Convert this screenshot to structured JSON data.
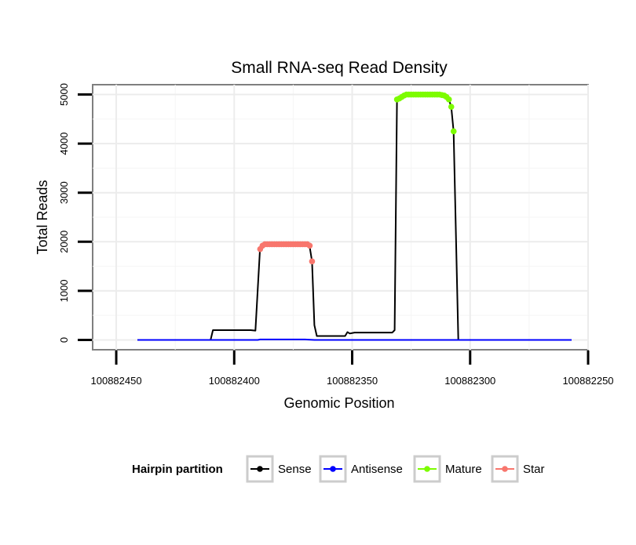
{
  "chart_data": {
    "type": "line",
    "title": "Small RNA-seq Read Density",
    "xlabel": "Genomic Position",
    "ylabel": "Total Reads",
    "xlim": [
      100882460,
      100882250
    ],
    "x_reversed": true,
    "ylim": [
      -200,
      5200
    ],
    "x_ticks": [
      100882450,
      100882400,
      100882350,
      100882300,
      100882250
    ],
    "x_tick_labels": [
      "100882450",
      "100882400",
      "100882350",
      "100882300",
      "100882250"
    ],
    "y_ticks": [
      0,
      1000,
      2000,
      3000,
      4000,
      5000
    ],
    "y_tick_labels": [
      "0",
      "1000",
      "2000",
      "3000",
      "4000",
      "5000"
    ],
    "grid": true,
    "legend": {
      "title": "Hairpin partition",
      "position": "bottom",
      "items": [
        {
          "name": "Sense",
          "color": "#000000"
        },
        {
          "name": "Antisense",
          "color": "#0000ff"
        },
        {
          "name": "Mature",
          "color": "#7cfc00"
        },
        {
          "name": "Star",
          "color": "#f8766d"
        }
      ]
    },
    "series": [
      {
        "name": "Sense",
        "color": "#000000",
        "points": [
          [
            100882441,
            0
          ],
          [
            100882410,
            0
          ],
          [
            100882409,
            200
          ],
          [
            100882393,
            200
          ],
          [
            100882391,
            190
          ],
          [
            100882389,
            1900
          ],
          [
            100882387,
            1950
          ],
          [
            100882370,
            1950
          ],
          [
            100882368,
            1900
          ],
          [
            100882367,
            1600
          ],
          [
            100882366,
            300
          ],
          [
            100882365,
            80
          ],
          [
            100882353,
            80
          ],
          [
            100882352,
            160
          ],
          [
            100882351,
            130
          ],
          [
            100882349,
            150
          ],
          [
            100882333,
            150
          ],
          [
            100882332,
            200
          ],
          [
            100882331,
            4900
          ],
          [
            100882329,
            4950
          ],
          [
            100882325,
            5000
          ],
          [
            100882312,
            5000
          ],
          [
            100882310,
            4950
          ],
          [
            100882309,
            4900
          ],
          [
            100882308,
            4750
          ],
          [
            100882307,
            4250
          ],
          [
            100882305,
            0
          ],
          [
            100882257,
            0
          ]
        ]
      },
      {
        "name": "Antisense",
        "color": "#0000ff",
        "points": [
          [
            100882441,
            0
          ],
          [
            100882390,
            0
          ],
          [
            100882389,
            10
          ],
          [
            100882370,
            10
          ],
          [
            100882366,
            0
          ],
          [
            100882257,
            0
          ]
        ]
      },
      {
        "name": "Mature",
        "color": "#7cfc00",
        "points": [
          [
            100882331,
            4900
          ],
          [
            100882330,
            4920
          ],
          [
            100882329,
            4950
          ],
          [
            100882328,
            4980
          ],
          [
            100882327,
            5000
          ],
          [
            100882326,
            5000
          ],
          [
            100882325,
            5000
          ],
          [
            100882324,
            5000
          ],
          [
            100882323,
            5000
          ],
          [
            100882322,
            5000
          ],
          [
            100882321,
            5000
          ],
          [
            100882320,
            5000
          ],
          [
            100882319,
            5000
          ],
          [
            100882318,
            5000
          ],
          [
            100882317,
            5000
          ],
          [
            100882316,
            5000
          ],
          [
            100882315,
            5000
          ],
          [
            100882314,
            5000
          ],
          [
            100882313,
            5000
          ],
          [
            100882312,
            4990
          ],
          [
            100882311,
            4980
          ],
          [
            100882310,
            4950
          ],
          [
            100882309,
            4900
          ],
          [
            100882308,
            4750
          ],
          [
            100882307,
            4250
          ]
        ]
      },
      {
        "name": "Star",
        "color": "#f8766d",
        "points": [
          [
            100882389,
            1850
          ],
          [
            100882388,
            1920
          ],
          [
            100882387,
            1950
          ],
          [
            100882386,
            1950
          ],
          [
            100882385,
            1950
          ],
          [
            100882384,
            1950
          ],
          [
            100882383,
            1950
          ],
          [
            100882382,
            1950
          ],
          [
            100882381,
            1950
          ],
          [
            100882380,
            1950
          ],
          [
            100882379,
            1950
          ],
          [
            100882378,
            1950
          ],
          [
            100882377,
            1950
          ],
          [
            100882376,
            1950
          ],
          [
            100882375,
            1950
          ],
          [
            100882374,
            1950
          ],
          [
            100882373,
            1950
          ],
          [
            100882372,
            1950
          ],
          [
            100882371,
            1950
          ],
          [
            100882370,
            1950
          ],
          [
            100882369,
            1950
          ],
          [
            100882368,
            1920
          ],
          [
            100882367,
            1600
          ]
        ]
      }
    ]
  }
}
